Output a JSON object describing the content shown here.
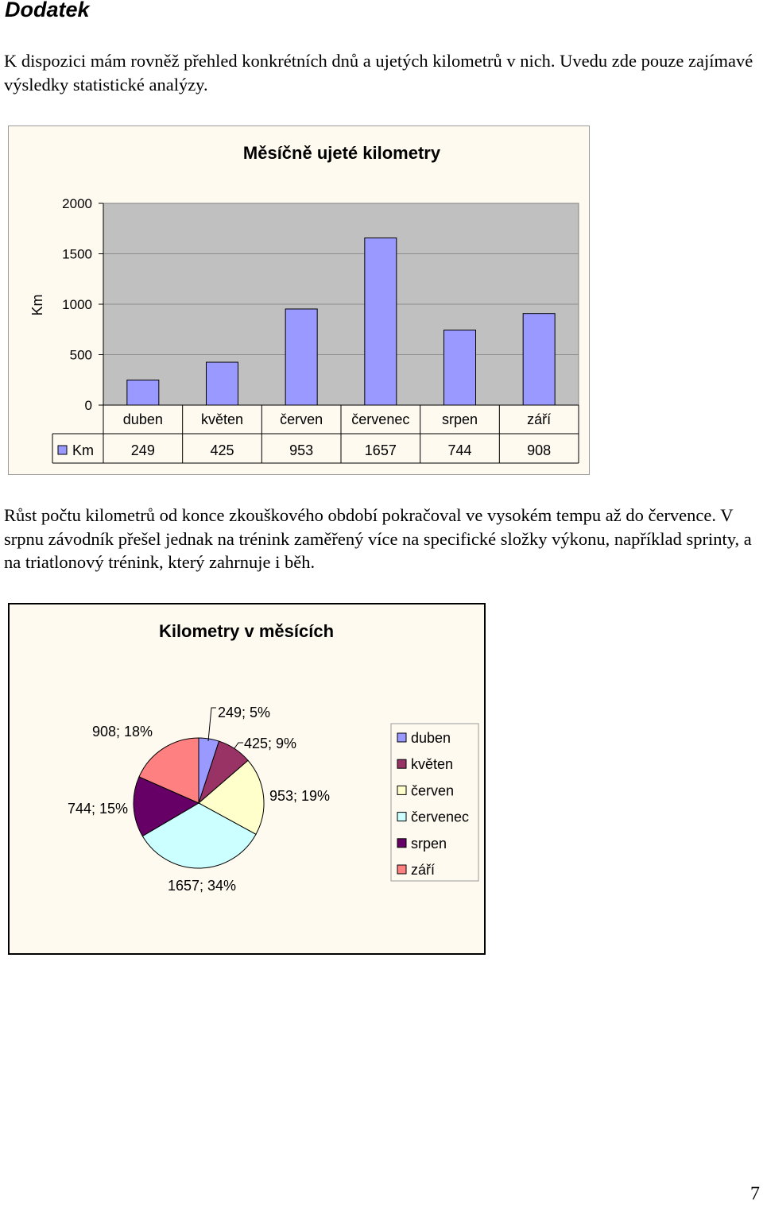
{
  "heading": "Dodatek",
  "paragraph1": "K dispozici mám rovněž přehled konkrétních dnů a ujetých kilometrů v nich. Uvedu zde pouze zajímavé výsledky statistické analýzy.",
  "paragraph2": "Růst počtu kilometrů od konce zkouškového období pokračoval ve vysokém tempu až do července. V srpnu závodník přešel jednak na trénink zaměřený více na specifické složky výkonu, například sprinty, a na triatlonový trénink, který zahrnuje i běh.",
  "page_number": "7",
  "chart_data": [
    {
      "type": "bar",
      "title": "Měsíčně ujeté kilometry",
      "ylabel": "Km",
      "xlabel": "",
      "categories": [
        "duben",
        "květen",
        "červen",
        "červenec",
        "srpen",
        "září"
      ],
      "series": [
        {
          "name": "Km",
          "values": [
            249,
            425,
            953,
            1657,
            744,
            908
          ]
        }
      ],
      "yticks": [
        "0",
        "500",
        "1000",
        "1500",
        "2000"
      ],
      "ylim": [
        0,
        2000
      ],
      "grid": true,
      "data_table": true,
      "colors": {
        "bar": "#9999ff",
        "plot_bg": "#c0c0c0",
        "chart_bg": "#fefaf0"
      }
    },
    {
      "type": "pie",
      "title": "Kilometry v měsících",
      "categories": [
        "duben",
        "květen",
        "červen",
        "červenec",
        "srpen",
        "září"
      ],
      "values": [
        249,
        425,
        953,
        1657,
        744,
        908
      ],
      "labels": [
        "249; 5%",
        "425; 9%",
        "953; 19%",
        "1657; 34%",
        "744; 15%",
        "908; 18%"
      ],
      "legend": "right",
      "colors": [
        "#9999ff",
        "#993366",
        "#ffffcc",
        "#ccffff",
        "#660066",
        "#ff8080"
      ]
    }
  ]
}
